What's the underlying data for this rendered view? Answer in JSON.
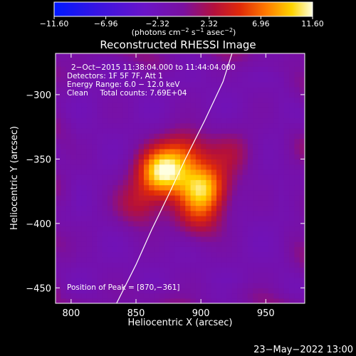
{
  "chart_data": {
    "type": "heatmap",
    "title": "Reconstructed RHESSI Image",
    "xlabel": "Heliocentric X (arcsec)",
    "ylabel": "Heliocentric Y (arcsec)",
    "xlim": [
      788,
      980
    ],
    "ylim": [
      -462,
      -268
    ],
    "x_ticks": [
      800,
      850,
      900,
      950
    ],
    "y_ticks": [
      -300,
      -350,
      -400,
      -450
    ],
    "x_tick_labels": [
      "800",
      "850",
      "900",
      "950"
    ],
    "y_tick_labels": [
      "−300",
      "−350",
      "−400",
      "−450"
    ],
    "colorbar": {
      "range": [
        -11.6,
        11.6
      ],
      "tick_labels": [
        "−11.60",
        "−6.96",
        "−2.32",
        "2.32",
        "6.96",
        "11.60"
      ],
      "unit_base": "(photons cm",
      "unit_exp1": "−2",
      "unit_mid": " s",
      "unit_exp2": "−1",
      "unit_mid2": " asec",
      "unit_exp3": "−2",
      "unit_end": ")"
    },
    "annotations": [
      "2−Oct−2015 11:38:04.000 to 11:44:04.000",
      "Detectors: 1F 5F 7F, Att 1",
      "Energy Range: 6.0 − 12.0 keV",
      "Clean     Total counts: 7.69E+04"
    ],
    "peak_label": "Position of Peak = [870,−361]",
    "peak": [
      870,
      -361
    ],
    "sources": [
      {
        "x": 870,
        "y": -360,
        "amplitude": 11.6
      },
      {
        "x": 902,
        "y": -372,
        "amplitude": 10.0
      },
      {
        "x": 888,
        "y": -345,
        "amplitude": 5.5
      },
      {
        "x": 898,
        "y": -395,
        "amplitude": 4.5
      },
      {
        "x": 852,
        "y": -385,
        "amplitude": 4.0
      },
      {
        "x": 925,
        "y": -345,
        "amplitude": 3.0
      }
    ],
    "limb_curve": [
      [
        835,
        -462
      ],
      [
        850,
        -432
      ],
      [
        862,
        -405
      ],
      [
        875,
        -378
      ],
      [
        888,
        -350
      ],
      [
        903,
        -320
      ],
      [
        917,
        -290
      ],
      [
        924,
        -268
      ]
    ]
  },
  "footer": {
    "date": "23−May−2022 13:00"
  }
}
